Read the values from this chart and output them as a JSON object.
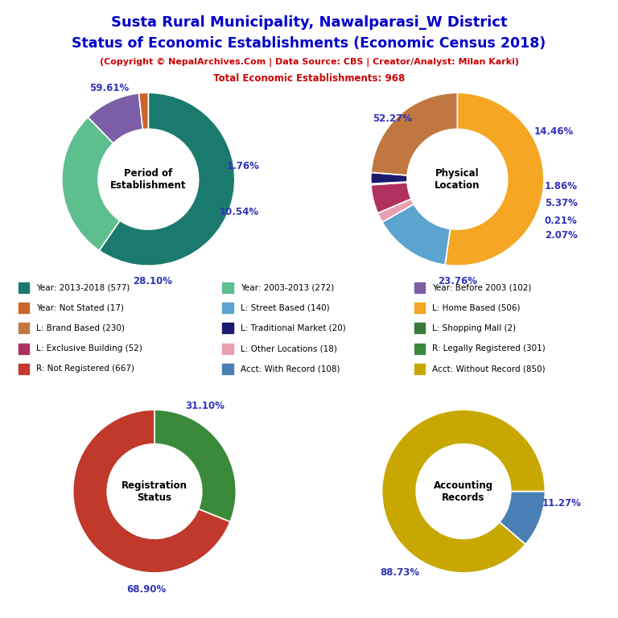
{
  "title_line1": "Susta Rural Municipality, Nawalparasi_W District",
  "title_line2": "Status of Economic Establishments (Economic Census 2018)",
  "subtitle": "(Copyright © NepalArchives.Com | Data Source: CBS | Creator/Analyst: Milan Karki)",
  "total_label": "Total Economic Establishments: 968",
  "pie1_label": "Period of\nEstablishment",
  "pie1_values": [
    577,
    272,
    102,
    17
  ],
  "pie1_colors": [
    "#1a7a6e",
    "#5dbf8e",
    "#7b5ea7",
    "#c8652a"
  ],
  "pie1_pcts": [
    "59.61%",
    "28.10%",
    "10.54%",
    "1.76%"
  ],
  "pie2_label": "Physical\nLocation",
  "pie2_values": [
    506,
    140,
    18,
    52,
    2,
    20,
    230
  ],
  "pie2_colors": [
    "#f5a623",
    "#5ba4cf",
    "#e8a0b0",
    "#b03060",
    "#3a7a3a",
    "#1a1a6e",
    "#c07840"
  ],
  "pie2_pcts": [
    "52.27%",
    "14.46%",
    "1.86%",
    "5.37%",
    "0.21%",
    "2.07%",
    "23.76%"
  ],
  "pie3_label": "Registration\nStatus",
  "pie3_values": [
    301,
    667
  ],
  "pie3_colors": [
    "#3a8a3a",
    "#c0392b"
  ],
  "pie3_pcts": [
    "31.10%",
    "68.90%"
  ],
  "pie4_label": "Accounting\nRecords",
  "pie4_values": [
    108,
    850
  ],
  "pie4_colors": [
    "#4a7fb5",
    "#c8a800"
  ],
  "pie4_pcts": [
    "11.27%",
    "88.73%"
  ],
  "legend_items": [
    {
      "label": "Year: 2013-2018 (577)",
      "color": "#1a7a6e"
    },
    {
      "label": "Year: 2003-2013 (272)",
      "color": "#5dbf8e"
    },
    {
      "label": "Year: Before 2003 (102)",
      "color": "#7b5ea7"
    },
    {
      "label": "Year: Not Stated (17)",
      "color": "#c8652a"
    },
    {
      "label": "L: Street Based (140)",
      "color": "#5ba4cf"
    },
    {
      "label": "L: Home Based (506)",
      "color": "#f5a623"
    },
    {
      "label": "L: Brand Based (230)",
      "color": "#c07840"
    },
    {
      "label": "L: Traditional Market (20)",
      "color": "#1a1a6e"
    },
    {
      "label": "L: Shopping Mall (2)",
      "color": "#3a7a3a"
    },
    {
      "label": "L: Exclusive Building (52)",
      "color": "#b03060"
    },
    {
      "label": "L: Other Locations (18)",
      "color": "#e8a0b0"
    },
    {
      "label": "R: Legally Registered (301)",
      "color": "#3a8a3a"
    },
    {
      "label": "R: Not Registered (667)",
      "color": "#c0392b"
    },
    {
      "label": "Acct: With Record (108)",
      "color": "#4a7fb5"
    },
    {
      "label": "Acct: Without Record (850)",
      "color": "#c8a800"
    }
  ],
  "title_color": "#0000cc",
  "subtitle_color": "#cc0000",
  "pct_color": "#3333bb",
  "bg_color": "#ffffff"
}
